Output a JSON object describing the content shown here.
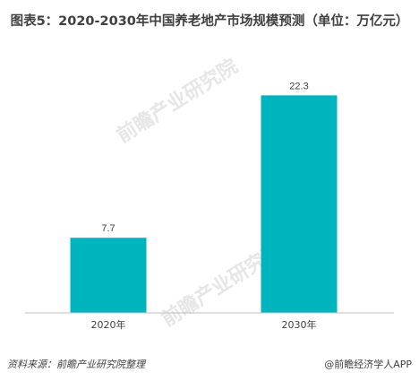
{
  "title": "图表5：2020-2030年中国养老地产市场规模预测（单位：万亿元）",
  "source": "资料来源：前瞻产业研究院整理",
  "brand": "@前瞻经济学人APP",
  "watermark": "前瞻产业研究院",
  "colors": {
    "bar": "#00b4be",
    "axis": "#bfbfbf",
    "text": "#404040"
  },
  "chart_data": {
    "type": "bar",
    "categories": [
      "2020年",
      "2030年"
    ],
    "values": [
      7.7,
      22.3
    ],
    "title": "图表5：2020-2030年中国养老地产市场规模预测（单位：万亿元）",
    "xlabel": "",
    "ylabel": "",
    "ylim": [
      0,
      25
    ],
    "grid": false,
    "legend": "none"
  }
}
